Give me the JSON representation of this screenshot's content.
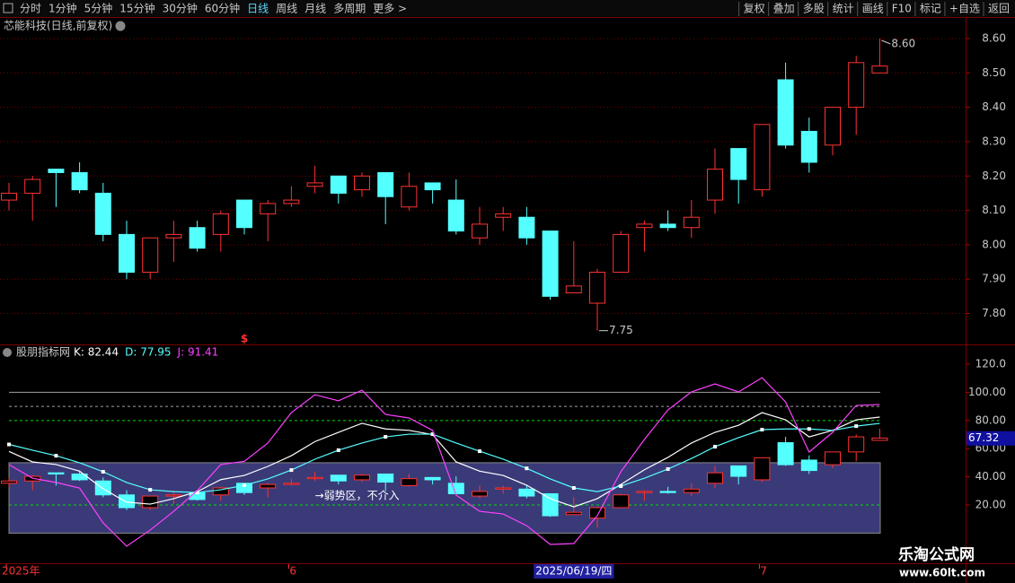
{
  "toolbar": {
    "left": [
      "分时",
      "1分钟",
      "5分钟",
      "15分钟",
      "30分钟",
      "60分钟",
      "日线",
      "周线",
      "月线",
      "多周期",
      "更多 >"
    ],
    "active_index": 6,
    "right": [
      "复权",
      "叠加",
      "多股",
      "统计",
      "画线",
      "F10",
      "标记",
      "+自选",
      "返回"
    ]
  },
  "watermark": {
    "title": "乐淘公式网",
    "url": "www.60lt.com"
  },
  "chart_data": [
    {
      "type": "candlestick",
      "title": "芯能科技(日线,前复权)",
      "categories": [
        "2025年",
        null,
        null,
        null,
        null,
        null,
        null,
        null,
        null,
        null,
        null,
        null,
        "6",
        null,
        null,
        null,
        null,
        null,
        null,
        null,
        null,
        null,
        null,
        null,
        "2025/06/19/四",
        null,
        null,
        null,
        null,
        null,
        null,
        null,
        "7",
        null,
        null,
        null,
        null,
        null
      ],
      "highlight_index": 24,
      "open": [
        8.13,
        8.15,
        8.22,
        8.21,
        8.15,
        8.03,
        7.92,
        8.02,
        8.05,
        8.03,
        8.13,
        8.09,
        8.12,
        8.17,
        8.2,
        8.16,
        8.21,
        8.11,
        8.18,
        8.13,
        8.02,
        8.08,
        8.08,
        8.04,
        7.86,
        7.83,
        7.92,
        8.05,
        8.06,
        8.05,
        8.13,
        8.28,
        8.16,
        8.48,
        8.33,
        8.29,
        8.4,
        8.5
      ],
      "high": [
        8.18,
        8.2,
        8.22,
        8.24,
        8.18,
        8.07,
        8.02,
        8.07,
        8.07,
        8.1,
        8.13,
        8.13,
        8.17,
        8.23,
        8.2,
        8.21,
        8.21,
        8.21,
        8.18,
        8.19,
        8.11,
        8.11,
        8.11,
        8.04,
        8.01,
        7.93,
        8.04,
        8.07,
        8.1,
        8.13,
        8.28,
        8.28,
        8.35,
        8.53,
        8.37,
        8.4,
        8.55,
        8.6
      ],
      "low": [
        8.1,
        8.07,
        8.11,
        8.15,
        8.01,
        7.9,
        7.9,
        7.95,
        7.98,
        7.98,
        8.03,
        8.01,
        8.11,
        8.15,
        8.12,
        8.14,
        8.06,
        8.1,
        8.12,
        8.03,
        8.0,
        8.04,
        8.0,
        7.84,
        7.86,
        7.75,
        7.92,
        7.98,
        8.04,
        8.02,
        8.09,
        8.12,
        8.14,
        8.28,
        8.21,
        8.26,
        8.32,
        8.5
      ],
      "close": [
        8.15,
        8.19,
        8.21,
        8.16,
        8.03,
        7.92,
        8.02,
        8.03,
        7.99,
        8.09,
        8.05,
        8.12,
        8.13,
        8.18,
        8.15,
        8.2,
        8.14,
        8.17,
        8.16,
        8.04,
        8.06,
        8.09,
        8.02,
        7.85,
        7.88,
        7.92,
        8.03,
        8.06,
        8.05,
        8.08,
        8.22,
        8.19,
        8.35,
        8.29,
        8.24,
        8.4,
        8.53,
        8.52
      ],
      "up_color": "#ff3232",
      "down_color": "#54ffff",
      "ylim": [
        7.71,
        8.66
      ],
      "yticks": [
        {
          "value": 7.8,
          "label": "7.80"
        },
        {
          "value": 7.9,
          "label": "7.90"
        },
        {
          "value": 8.0,
          "label": "8.00"
        },
        {
          "value": 8.1,
          "label": "8.10"
        },
        {
          "value": 8.2,
          "label": "8.20"
        },
        {
          "value": 8.3,
          "label": "8.30"
        },
        {
          "value": 8.4,
          "label": "8.40"
        },
        {
          "value": 8.5,
          "label": "8.50"
        },
        {
          "value": 8.6,
          "label": "8.60"
        }
      ],
      "grid": true,
      "annotations": [
        {
          "value": 8.6,
          "label": "8.60"
        },
        {
          "value": 7.75,
          "label": "7.75"
        }
      ],
      "marker": "$"
    },
    {
      "type": "line",
      "title": "股朋指标网",
      "legend_labels": [
        "K: 82.44",
        "D: 77.95",
        "J: 91.41"
      ],
      "series": [
        {
          "name": "K",
          "color": "#ffffff",
          "values": [
            58,
            50.6,
            48.7,
            44,
            31.5,
            22,
            20.6,
            24.5,
            29.5,
            38,
            41,
            47.4,
            55,
            65,
            71.6,
            78,
            74,
            73,
            70,
            50.6,
            44,
            41,
            34,
            24.5,
            18.7,
            24.5,
            34.6,
            45,
            53.8,
            64,
            71.6,
            76.6,
            85.6,
            80.5,
            68.4,
            73,
            80.5,
            82.44
          ]
        },
        {
          "name": "D",
          "color": "#54ffff",
          "values": [
            63,
            58.9,
            55,
            50,
            43.6,
            36,
            30.8,
            29.5,
            28.9,
            30.8,
            34,
            38.5,
            44.8,
            52.5,
            58.9,
            64,
            68.4,
            70.3,
            70.3,
            64,
            58.2,
            52.5,
            46,
            38.5,
            32.1,
            29.5,
            33.4,
            39,
            45.5,
            53,
            61.4,
            67.8,
            73.5,
            74,
            74,
            73,
            76,
            77.95
          ]
        },
        {
          "name": "J",
          "color": "#ff40ff",
          "values": [
            48.7,
            39,
            36,
            32,
            7.3,
            -9.3,
            2.2,
            15.5,
            30.2,
            48.7,
            51,
            64,
            85.6,
            98.3,
            94,
            101.5,
            84.3,
            81.8,
            73,
            27,
            15.5,
            13.6,
            5.3,
            -8,
            -7.4,
            12.4,
            43.6,
            66.5,
            87.5,
            100.3,
            106,
            100.3,
            110.4,
            93.2,
            57.6,
            71.6,
            90.7,
            91.41
          ]
        }
      ],
      "ylim": [
        -21.4,
        133.4
      ],
      "yticks": [
        {
          "value": 20,
          "label": "20.00"
        },
        {
          "value": 40,
          "label": "40.00"
        },
        {
          "value": 60,
          "label": "60.00"
        },
        {
          "value": 80,
          "label": "80.00"
        },
        {
          "value": 100,
          "label": "100.00"
        },
        {
          "value": 120,
          "label": "120.0"
        }
      ],
      "hlines": [
        {
          "value": 100,
          "color": "#a0a0a0",
          "dashed": false
        },
        {
          "value": 90,
          "color": "#a0a0a0",
          "dashed": true
        },
        {
          "value": 80,
          "color": "#00e000",
          "dashed": true
        },
        {
          "value": 20,
          "color": "#00e000",
          "dashed": true
        }
      ],
      "zone": {
        "range": [
          0,
          50
        ],
        "color": "#3a3a78",
        "label": "→弱势区，不介入"
      },
      "cursor_value": 67.32
    }
  ]
}
